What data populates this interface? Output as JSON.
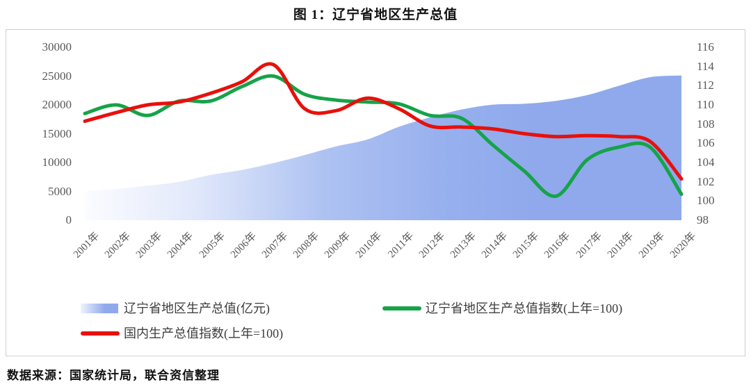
{
  "title": "图 1：辽宁省地区生产总值",
  "source": "数据来源：国家统计局，联合资信整理",
  "legend": {
    "area_label": "辽宁省地区生产总值(亿元)",
    "green_label": "辽宁省地区生产总值指数(上年=100)",
    "red_label": "国内生产总值指数(上年=100)"
  },
  "colors": {
    "area_start": "#FBFCFF",
    "area_mid": "#AEC2F2",
    "area_end": "#8FA9EC",
    "green_line": "#16A348",
    "red_line": "#E8100C",
    "axis_text": "#595959",
    "box_border": "#C9CED8"
  },
  "chart_data": {
    "type": "area",
    "title": "图 1：辽宁省地区生产总值",
    "categories": [
      "2001年",
      "2002年",
      "2003年",
      "2004年",
      "2005年",
      "2006年",
      "2007年",
      "2008年",
      "2009年",
      "2010年",
      "2011年",
      "2012年",
      "2013年",
      "2014年",
      "2015年",
      "2016年",
      "2017年",
      "2018年",
      "2019年",
      "2020年"
    ],
    "series": [
      {
        "name": "辽宁省地区生产总值(亿元)",
        "kind": "area",
        "axis": "left",
        "values": [
          5050,
          5420,
          6000,
          6650,
          7850,
          8700,
          9900,
          11300,
          12800,
          14000,
          16200,
          17850,
          19200,
          20050,
          20200,
          20700,
          21700,
          23300,
          24800,
          25100
        ]
      },
      {
        "name": "辽宁省地区生产总值指数(上年=100)",
        "kind": "line",
        "axis": "right",
        "color": "#16A348",
        "values": [
          109.1,
          110.0,
          108.9,
          110.4,
          110.4,
          111.9,
          113.0,
          111.1,
          110.5,
          110.3,
          110.1,
          108.9,
          108.6,
          105.8,
          103.1,
          100.5,
          104.3,
          105.6,
          105.6,
          100.7
        ]
      },
      {
        "name": "国内生产总值指数(上年=100)",
        "kind": "line",
        "axis": "right",
        "color": "#E8100C",
        "values": [
          108.3,
          109.2,
          110.0,
          110.3,
          111.2,
          112.4,
          114.2,
          109.6,
          109.4,
          110.7,
          109.6,
          107.8,
          107.7,
          107.5,
          107.0,
          106.7,
          106.8,
          106.7,
          106.2,
          102.3
        ]
      }
    ],
    "left_axis": {
      "min": 0,
      "max": 30000,
      "step": 5000,
      "ticks": [
        30000,
        25000,
        20000,
        15000,
        10000,
        5000,
        0
      ]
    },
    "right_axis": {
      "min": 98,
      "max": 116,
      "step": 2,
      "ticks": [
        116,
        114,
        112,
        110,
        108,
        106,
        104,
        102,
        100,
        98
      ]
    },
    "grid": false,
    "legend_position": "bottom",
    "smoothing": "spline"
  }
}
